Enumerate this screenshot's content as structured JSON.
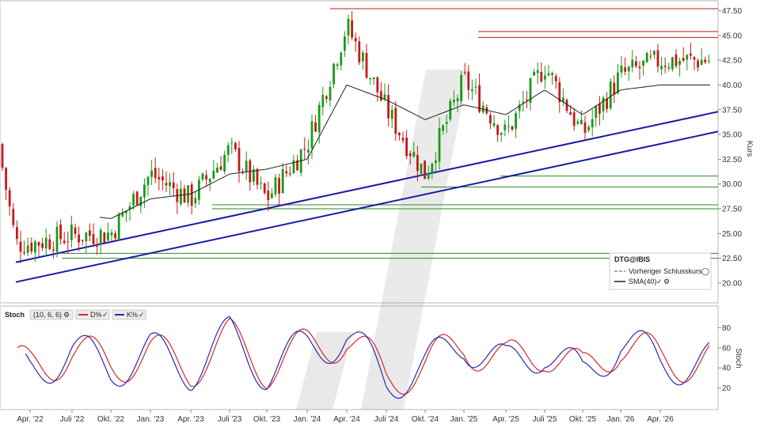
{
  "watermark_icon": "chart-logo-watermark",
  "price_chart": {
    "ylabel": "Kurs",
    "yticks": [
      "20.00",
      "22.50",
      "25.00",
      "27.50",
      "30.00",
      "32.50",
      "35.00",
      "37.50",
      "40.00",
      "42.50",
      "45.00",
      "47.50"
    ],
    "ylim": [
      18.0,
      48.5
    ],
    "legend": {
      "title": "DTG@IBIS",
      "prev_close": "Vorheriger Schlusskurs",
      "sma": "SMA(40)"
    },
    "resistance_red": [
      47.7,
      45.4,
      44.8
    ],
    "support_green": [
      30.8,
      29.7,
      27.9,
      27.5,
      23.0,
      22.5
    ],
    "colors": {
      "up": "#1a9a1a",
      "down": "#c41a1a",
      "trend": "#1a1aa8",
      "sma": "#222222",
      "red_line": "#c41a1a",
      "green_line": "#2a8a2a"
    }
  },
  "stoch_chart": {
    "label": "Stoch",
    "params": "(10, 6, 6)",
    "d_label": "D%",
    "k_label": "K%",
    "ylabel": "Stoch",
    "yticks": [
      "20",
      "40",
      "60",
      "80"
    ],
    "ylim": [
      0,
      100
    ],
    "colors": {
      "d": "#d42a2a",
      "k": "#2a2ab0"
    }
  },
  "xaxis": {
    "labels": [
      "Apr. '22",
      "Juli '22",
      "Okt. '22",
      "Jan. '23",
      "Apr. '23",
      "Juli '23",
      "Okt. '23",
      "Jan. '24",
      "Apr. '24",
      "Juli '24",
      "Okt. '24",
      "Jan. '25",
      "Apr. '25",
      "Juli '25",
      "Okt. '25",
      "Jan. '26",
      "Apr. '26"
    ]
  },
  "chart_data": {
    "type": "line",
    "x": [
      "Apr. '22",
      "Juli '22",
      "Okt. '22",
      "Jan. '23",
      "Apr. '23",
      "Juli '23",
      "Okt. '23",
      "Jan. '24",
      "Apr. '24",
      "Juli '24",
      "Okt. '24",
      "Jan. '25",
      "Apr. '25",
      "Juli '25",
      "Okt. '25",
      "Jan. '26",
      "Apr. '26"
    ],
    "series": [
      {
        "name": "DTG@IBIS",
        "values": [
          24.0,
          24.8,
          25.0,
          31.0,
          28.5,
          33.5,
          28.5,
          34.0,
          46.0,
          37.5,
          31.0,
          40.5,
          35.0,
          42.0,
          35.0,
          41.0,
          42.5
        ]
      },
      {
        "name": "SMA(40)",
        "values": [
          26.0,
          27.0,
          26.5,
          28.5,
          29.0,
          31.0,
          31.5,
          32.5,
          40.0,
          38.5,
          36.5,
          38.0,
          37.0,
          39.5,
          37.0,
          39.5,
          40.0
        ]
      }
    ],
    "stoch": {
      "x": [
        "Apr. '22",
        "Juli '22",
        "Okt. '22",
        "Jan. '23",
        "Apr. '23",
        "Juli '23",
        "Okt. '23",
        "Jan. '24",
        "Apr. '24",
        "Juli '24",
        "Okt. '24",
        "Jan. '25",
        "Apr. '25",
        "Juli '25",
        "Okt. '25",
        "Jan. '26",
        "Apr. '26"
      ],
      "series": [
        {
          "name": "K%",
          "values": [
            25,
            62,
            30,
            60,
            28,
            90,
            25,
            70,
            92,
            5,
            30,
            85,
            30,
            70,
            10,
            85,
            40
          ]
        },
        {
          "name": "D%",
          "values": [
            30,
            60,
            38,
            58,
            32,
            85,
            32,
            68,
            90,
            12,
            32,
            80,
            38,
            68,
            18,
            80,
            45
          ]
        }
      ]
    }
  }
}
